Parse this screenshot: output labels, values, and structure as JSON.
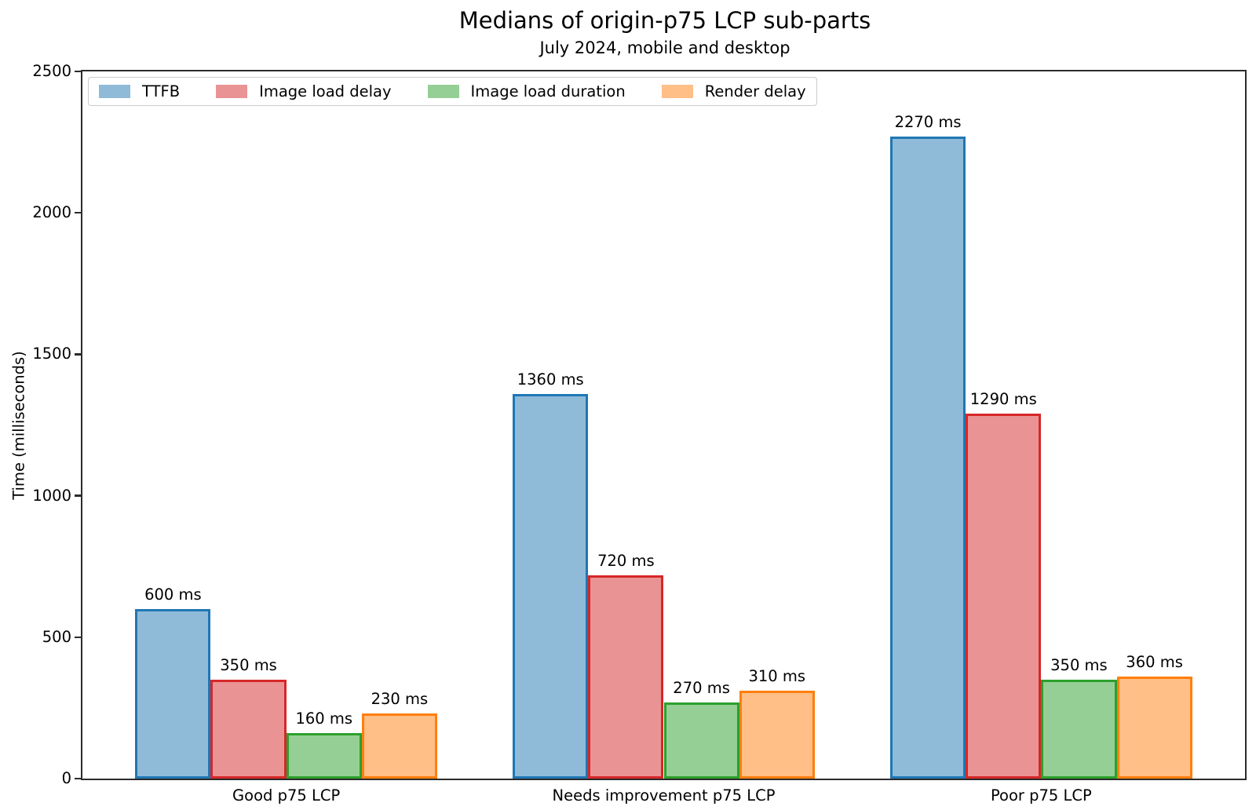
{
  "chart_data": {
    "type": "bar",
    "title": "Medians of origin-p75 LCP sub-parts",
    "subtitle": "July 2024, mobile and desktop",
    "ylabel": "Time (milliseconds)",
    "ylim": [
      0,
      2500
    ],
    "yticks": [
      0,
      500,
      1000,
      1500,
      2000,
      2500
    ],
    "grid": false,
    "legend_position": "upper-left",
    "bar_label_suffix": " ms",
    "categories": [
      "Good p75 LCP",
      "Needs improvement p75 LCP",
      "Poor p75 LCP"
    ],
    "series": [
      {
        "name": "TTFB",
        "values": [
          600,
          1360,
          2270
        ],
        "fill_color": "#8fbbd9",
        "edge_color": "#1f77b4"
      },
      {
        "name": "Image load delay",
        "values": [
          350,
          720,
          1290
        ],
        "fill_color": "#ea9394",
        "edge_color": "#d62728"
      },
      {
        "name": "Image load duration",
        "values": [
          160,
          270,
          350
        ],
        "fill_color": "#95cf95",
        "edge_color": "#2ca02c"
      },
      {
        "name": "Render delay",
        "values": [
          230,
          310,
          360
        ],
        "fill_color": "#ffbf87",
        "edge_color": "#ff7f0e"
      }
    ],
    "axis_color": "#2b2b2b",
    "text_color": "#000000",
    "background_color": "#ffffff"
  }
}
